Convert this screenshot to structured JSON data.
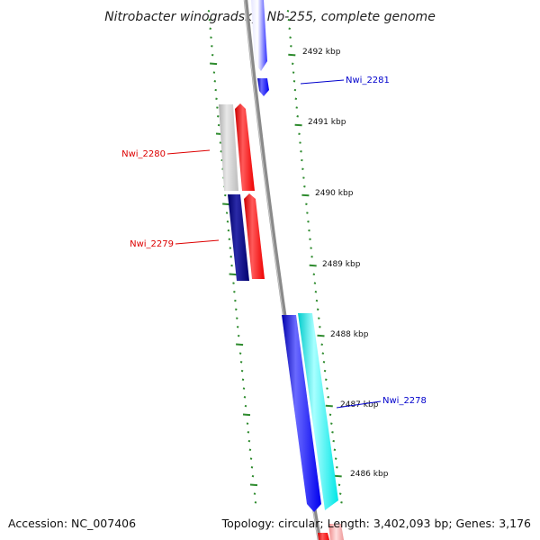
{
  "title": "Nitrobacter winogradskyi Nb-255, complete genome",
  "footer": {
    "accession": "Accession: NC_007406",
    "summary": "Topology: circular; Length: 3,402,093 bp; Genes: 3,176"
  },
  "colors": {
    "backbone": "#888888",
    "tick": "#2e8b2e",
    "label_forward": "#0000cc",
    "label_reverse": "#dd0000",
    "gene_blue": "#0000ff",
    "gene_red": "#ff0000",
    "gene_grey": "#c0c0c0",
    "gene_navy": "#000080",
    "gene_cyan": "#00ffff",
    "gene_pink": "#f4a0a0"
  },
  "kbp_labels": [
    {
      "text": "2492 kbp"
    },
    {
      "text": "2491 kbp"
    },
    {
      "text": "2490 kbp"
    },
    {
      "text": "2489 kbp"
    },
    {
      "text": "2488 kbp"
    },
    {
      "text": "2487 kbp"
    },
    {
      "text": "2486 kbp"
    }
  ],
  "gene_labels": [
    {
      "text": "Nwi_2281"
    },
    {
      "text": "Nwi_2280"
    },
    {
      "text": "Nwi_2279"
    },
    {
      "text": "Nwi_2278"
    }
  ]
}
